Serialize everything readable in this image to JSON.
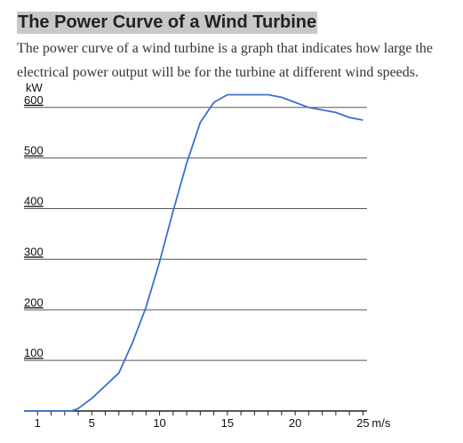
{
  "page": {
    "title": "The Power Curve of a Wind Turbine",
    "intro": "The power curve of a wind turbine is a graph that indicates how large the electrical power output will be for the turbine at different wind speeds."
  },
  "colors": {
    "curve": "#3b6fd0",
    "grid": "#555555",
    "axis": "#222222",
    "title_bg": "#c8c8c8"
  },
  "chart_data": {
    "type": "line",
    "title": "",
    "ylabel": "kW",
    "xlabel": "m/s",
    "xlim": [
      0,
      25.3
    ],
    "ylim": [
      0,
      640
    ],
    "x_tick_labels": [
      {
        "value": 1,
        "label": "1"
      },
      {
        "value": 5,
        "label": "5"
      },
      {
        "value": 10,
        "label": "10"
      },
      {
        "value": 15,
        "label": "15"
      },
      {
        "value": 20,
        "label": "20"
      },
      {
        "value": 25,
        "label": "25"
      }
    ],
    "y_tick_labels": [
      {
        "value": 100,
        "label": "100"
      },
      {
        "value": 200,
        "label": "200"
      },
      {
        "value": 300,
        "label": "300"
      },
      {
        "value": 400,
        "label": "400"
      },
      {
        "value": 500,
        "label": "500"
      },
      {
        "value": 600,
        "label": "600"
      }
    ],
    "grid": true,
    "series": [
      {
        "x": [
          0,
          3.5,
          4,
          5,
          6,
          7,
          7.5,
          8,
          9,
          10,
          11,
          12,
          13,
          14,
          15,
          16,
          17,
          18,
          19,
          20,
          21,
          22,
          23,
          24,
          25
        ],
        "y": [
          0,
          0,
          5,
          25,
          50,
          75,
          105,
          135,
          205,
          295,
          395,
          490,
          570,
          610,
          625,
          625,
          625,
          625,
          620,
          610,
          600,
          595,
          590,
          580,
          575
        ]
      }
    ]
  }
}
